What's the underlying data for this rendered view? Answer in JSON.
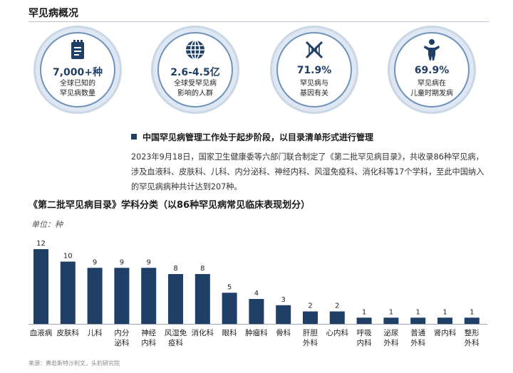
{
  "header": {
    "title": "罕见病概况"
  },
  "stats": [
    {
      "icon": "document-icon",
      "value": "7,000+种",
      "desc": [
        "全球已知的",
        "罕见病数量"
      ]
    },
    {
      "icon": "globe-icon",
      "value": "2.6-4.5亿",
      "desc": [
        "全球受罕见病",
        "影响的人群"
      ]
    },
    {
      "icon": "dna-icon",
      "value": "71.9%",
      "desc": [
        "罕见病与",
        "基因有关"
      ]
    },
    {
      "icon": "child-icon",
      "value": "69.9%",
      "desc": [
        "罕见病在",
        "儿童时期发病"
      ]
    }
  ],
  "subhead": "中国罕见病管理工作处于起步阶段，以目录清单形式进行管理",
  "body_text": "2023年9月18日，国家卫生健康委等六部门联合制定了《第二批罕见病目录》，共收录86种罕见病，涉及血液科、皮肤科、儿科、内分泌科、神经内科、风湿免疫科、消化科等17个学科，至此中国纳入的罕见病病种共计达到207种。",
  "footer": "来源：弗若斯特沙利文，头豹研究院",
  "colors": {
    "bar": "#1f3f66",
    "accent": "#6f93bb",
    "ring": "#dfe8f2"
  },
  "chart_data": {
    "type": "bar",
    "title": "《第二批罕见病目录》学科分类（以86种罕见病常见临床表现划分）",
    "unit": "单位：种",
    "categories": [
      "血液病",
      "皮肤科",
      "儿科",
      "内分泌科",
      "神经内科",
      "风湿免疫科",
      "消化科",
      "眼科",
      "肿瘤科",
      "骨科",
      "肝胆外科",
      "心内科",
      "呼吸内科",
      "泌尿外科",
      "普通外科",
      "肾内科",
      "整形外科"
    ],
    "category_lines": [
      [
        "血液病"
      ],
      [
        "皮肤科"
      ],
      [
        "儿科"
      ],
      [
        "内分",
        "泌科"
      ],
      [
        "神经",
        "内科"
      ],
      [
        "风湿免",
        "疫科"
      ],
      [
        "消化科"
      ],
      [
        "眼科"
      ],
      [
        "肿瘤科"
      ],
      [
        "骨科"
      ],
      [
        "肝胆",
        "外科"
      ],
      [
        "心内科"
      ],
      [
        "呼吸",
        "内科"
      ],
      [
        "泌尿",
        "外科"
      ],
      [
        "普通",
        "外科"
      ],
      [
        "肾内科"
      ],
      [
        "整形",
        "外科"
      ]
    ],
    "values": [
      12,
      10,
      9,
      9,
      9,
      8,
      8,
      5,
      4,
      3,
      2,
      2,
      1,
      1,
      1,
      1,
      1
    ],
    "ylim": [
      0,
      12
    ],
    "grid": false,
    "legend": "none"
  }
}
